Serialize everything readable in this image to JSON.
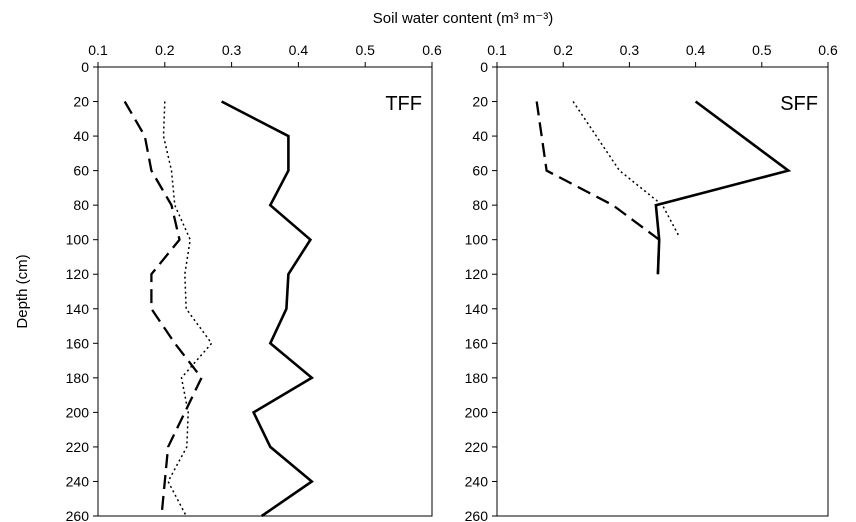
{
  "chart_data": {
    "type": "line",
    "xlabel": "Soil water content (m³ m⁻³)",
    "ylabel": "Depth (cm)",
    "xlim": [
      0.1,
      0.6
    ],
    "ylim": [
      0,
      260
    ],
    "y_inverted": true,
    "x_ticks": [
      "0.1",
      "0.2",
      "0.3",
      "0.4",
      "0.5",
      "0.6"
    ],
    "y_ticks": [
      "0",
      "20",
      "40",
      "60",
      "80",
      "100",
      "120",
      "140",
      "160",
      "180",
      "200",
      "220",
      "240",
      "260"
    ],
    "legend": "none",
    "grid": false,
    "panels": [
      {
        "label": "TFF",
        "series": [
          {
            "style": "solid",
            "color": "#000000",
            "points": [
              [
                0.285,
                20
              ],
              [
                0.385,
                40
              ],
              [
                0.385,
                60
              ],
              [
                0.358,
                80
              ],
              [
                0.418,
                100
              ],
              [
                0.385,
                120
              ],
              [
                0.382,
                140
              ],
              [
                0.358,
                160
              ],
              [
                0.42,
                180
              ],
              [
                0.333,
                200
              ],
              [
                0.358,
                220
              ],
              [
                0.42,
                240
              ],
              [
                0.345,
                260
              ]
            ]
          },
          {
            "style": "dotted",
            "color": "#000000",
            "points": [
              [
                0.2,
                20
              ],
              [
                0.198,
                40
              ],
              [
                0.21,
                60
              ],
              [
                0.215,
                80
              ],
              [
                0.238,
                100
              ],
              [
                0.23,
                120
              ],
              [
                0.232,
                140
              ],
              [
                0.27,
                160
              ],
              [
                0.225,
                180
              ],
              [
                0.235,
                200
              ],
              [
                0.233,
                220
              ],
              [
                0.205,
                240
              ],
              [
                0.232,
                260
              ]
            ]
          },
          {
            "style": "dashed",
            "color": "#000000",
            "points": [
              [
                0.14,
                20
              ],
              [
                0.17,
                40
              ],
              [
                0.18,
                60
              ],
              [
                0.21,
                80
              ],
              [
                0.222,
                100
              ],
              [
                0.18,
                120
              ],
              [
                0.18,
                140
              ],
              [
                0.215,
                160
              ],
              [
                0.255,
                180
              ],
              [
                0.23,
                200
              ],
              [
                0.205,
                220
              ],
              [
                0.2,
                240
              ],
              [
                0.195,
                260
              ]
            ]
          }
        ]
      },
      {
        "label": "SFF",
        "series": [
          {
            "style": "solid",
            "color": "#000000",
            "points": [
              [
                0.4,
                20
              ],
              [
                0.54,
                60
              ],
              [
                0.34,
                80
              ],
              [
                0.345,
                100
              ],
              [
                0.343,
                120
              ]
            ]
          },
          {
            "style": "dotted",
            "color": "#000000",
            "points": [
              [
                0.215,
                20
              ],
              [
                0.285,
                60
              ],
              [
                0.35,
                80
              ],
              [
                0.375,
                98
              ]
            ]
          },
          {
            "style": "dashed",
            "color": "#000000",
            "points": [
              [
                0.16,
                20
              ],
              [
                0.175,
                60
              ],
              [
                0.275,
                80
              ],
              [
                0.345,
                100
              ],
              [
                0.343,
                120
              ]
            ]
          }
        ]
      }
    ]
  }
}
